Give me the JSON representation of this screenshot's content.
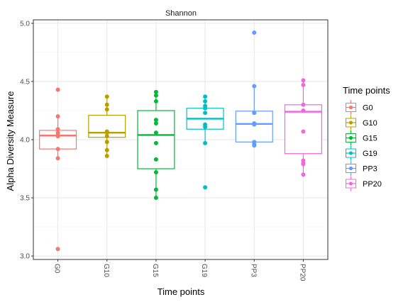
{
  "chart_data": {
    "type": "boxplot",
    "title": "Shannon",
    "xlabel": "Time points",
    "ylabel": "Alpha Diversity Measure",
    "ylim": [
      2.97,
      5.03
    ],
    "yticks": [
      3.0,
      3.5,
      4.0,
      4.5,
      5.0
    ],
    "ytick_labels": [
      "3.0",
      "3.5",
      "4.0",
      "4.5",
      "5.0"
    ],
    "categories": [
      "G0",
      "G10",
      "G15",
      "G19",
      "PP3",
      "PP20"
    ],
    "legend": {
      "title": "Time points",
      "placement": "right",
      "entries": [
        "G0",
        "G10",
        "G15",
        "G19",
        "PP3",
        "PP20"
      ]
    },
    "grid": true,
    "series": [
      {
        "colour": "#F8766D",
        "box": {
          "q1": 3.92,
          "median": 4.035,
          "q3": 4.08,
          "whisker_low": 3.84,
          "whisker_high": 4.2
        },
        "points": [
          4.43,
          4.2,
          4.09,
          4.06,
          4.04,
          4.03,
          3.92,
          3.84,
          3.06
        ]
      },
      {
        "colour": "#B79F00",
        "box": {
          "q1": 4.02,
          "median": 4.06,
          "q3": 4.21,
          "whisker_low": 3.86,
          "whisker_high": 4.37
        },
        "points": [
          4.37,
          4.3,
          4.26,
          4.07,
          4.06,
          4.03,
          3.98,
          3.91,
          3.86
        ]
      },
      {
        "colour": "#00BA38",
        "box": {
          "q1": 3.75,
          "median": 4.04,
          "q3": 4.25,
          "whisker_low": 3.5,
          "whisker_high": 4.41
        },
        "points": [
          4.41,
          4.38,
          4.33,
          4.17,
          4.14,
          4.06,
          3.97,
          3.83,
          3.72,
          3.57,
          3.5
        ]
      },
      {
        "colour": "#00BFC4",
        "box": {
          "q1": 4.09,
          "median": 4.18,
          "q3": 4.27,
          "whisker_low": 3.97,
          "whisker_high": 4.37
        },
        "points": [
          4.37,
          4.33,
          4.29,
          4.27,
          4.23,
          4.13,
          4.11,
          3.97,
          3.59
        ]
      },
      {
        "colour": "#619CFF",
        "box": {
          "q1": 3.98,
          "median": 4.135,
          "q3": 4.245,
          "whisker_low": 3.95,
          "whisker_high": 4.46
        },
        "points": [
          4.92,
          4.46,
          4.23,
          4.14,
          4.13,
          3.98,
          3.96,
          3.95
        ]
      },
      {
        "colour": "#F564E3",
        "box": {
          "q1": 3.88,
          "median": 4.24,
          "q3": 4.3,
          "whisker_low": 3.7,
          "whisker_high": 4.51
        },
        "points": [
          4.51,
          4.47,
          4.3,
          4.25,
          4.07,
          3.82,
          3.8,
          3.79,
          3.7
        ]
      }
    ]
  }
}
